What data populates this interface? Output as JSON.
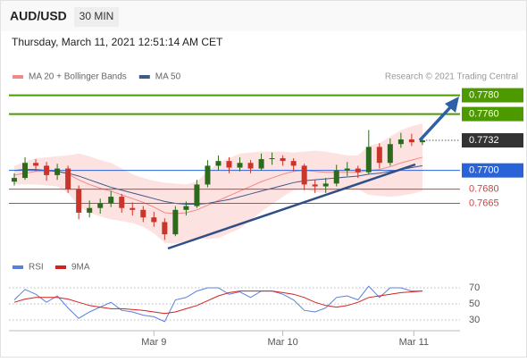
{
  "header": {
    "symbol": "AUD/USD",
    "timeframe": "30 MIN",
    "timestamp": "Thursday, March 11, 2021 12:51:14 AM CET",
    "credit": "Research © 2021 Trading Central"
  },
  "chart_data": [
    {
      "type": "candlestick",
      "up_color": "#2d6a1e",
      "down_color": "#c8352a",
      "ohlc": [
        [
          0.7688,
          0.7697,
          0.7684,
          0.7692
        ],
        [
          0.7692,
          0.7714,
          0.769,
          0.7708
        ],
        [
          0.7708,
          0.7712,
          0.7699,
          0.7705
        ],
        [
          0.7705,
          0.7709,
          0.7689,
          0.7695
        ],
        [
          0.7695,
          0.7707,
          0.769,
          0.7702
        ],
        [
          0.7702,
          0.7705,
          0.7676,
          0.768
        ],
        [
          0.768,
          0.7684,
          0.7648,
          0.7655
        ],
        [
          0.7655,
          0.7668,
          0.765,
          0.766
        ],
        [
          0.766,
          0.767,
          0.7654,
          0.7665
        ],
        [
          0.7665,
          0.7678,
          0.7661,
          0.7672
        ],
        [
          0.7672,
          0.7675,
          0.7655,
          0.766
        ],
        [
          0.766,
          0.7666,
          0.7652,
          0.7658
        ],
        [
          0.7658,
          0.7662,
          0.7645,
          0.765
        ],
        [
          0.765,
          0.7656,
          0.764,
          0.7645
        ],
        [
          0.7645,
          0.7649,
          0.7626,
          0.7632
        ],
        [
          0.7632,
          0.7662,
          0.763,
          0.7658
        ],
        [
          0.7658,
          0.7667,
          0.7652,
          0.7662
        ],
        [
          0.7662,
          0.769,
          0.766,
          0.7685
        ],
        [
          0.7685,
          0.7711,
          0.7682,
          0.7705
        ],
        [
          0.7705,
          0.7716,
          0.77,
          0.771
        ],
        [
          0.771,
          0.7714,
          0.7697,
          0.7703
        ],
        [
          0.7703,
          0.7714,
          0.7699,
          0.7708
        ],
        [
          0.7708,
          0.7711,
          0.7697,
          0.7702
        ],
        [
          0.7702,
          0.7718,
          0.77,
          0.7712
        ],
        [
          0.7712,
          0.7719,
          0.7706,
          0.7713
        ],
        [
          0.7713,
          0.7716,
          0.7705,
          0.771
        ],
        [
          0.771,
          0.7713,
          0.7699,
          0.7705
        ],
        [
          0.7705,
          0.7707,
          0.7679,
          0.7685
        ],
        [
          0.7685,
          0.769,
          0.7676,
          0.7683
        ],
        [
          0.7683,
          0.7692,
          0.7676,
          0.7686
        ],
        [
          0.7686,
          0.7706,
          0.7683,
          0.77
        ],
        [
          0.77,
          0.7709,
          0.7694,
          0.7702
        ],
        [
          0.7702,
          0.7705,
          0.7692,
          0.7698
        ],
        [
          0.7698,
          0.7743,
          0.7696,
          0.7725
        ],
        [
          0.7725,
          0.7729,
          0.7702,
          0.7708
        ],
        [
          0.7708,
          0.7734,
          0.7705,
          0.7728
        ],
        [
          0.7728,
          0.774,
          0.7724,
          0.7733
        ],
        [
          0.7733,
          0.7739,
          0.7726,
          0.773
        ],
        [
          0.773,
          0.7736,
          0.7727,
          0.7732
        ]
      ],
      "series": [
        {
          "name": "MA 20 + Bollinger Bands",
          "color": "#f08a8a",
          "band_color": "#fde2e2",
          "values": [
            0.7695,
            0.7697,
            0.7699,
            0.7699,
            0.7699,
            0.7696,
            0.769,
            0.7685,
            0.7681,
            0.7678,
            0.7674,
            0.767,
            0.7666,
            0.7661,
            0.7655,
            0.7654,
            0.7655,
            0.7658,
            0.7663,
            0.7668,
            0.7673,
            0.7678,
            0.7683,
            0.7688,
            0.7692,
            0.7696,
            0.7699,
            0.77,
            0.7699,
            0.7698,
            0.7698,
            0.7698,
            0.7698,
            0.77,
            0.7701,
            0.7704,
            0.7708,
            0.7711,
            0.7714
          ],
          "upper": [
            0.7705,
            0.7709,
            0.7713,
            0.7714,
            0.7715,
            0.7716,
            0.7718,
            0.7715,
            0.7711,
            0.7708,
            0.7702,
            0.7696,
            0.7692,
            0.7689,
            0.7687,
            0.7686,
            0.7685,
            0.7688,
            0.7699,
            0.7708,
            0.7713,
            0.7718,
            0.7719,
            0.772,
            0.772,
            0.772,
            0.7719,
            0.772,
            0.7721,
            0.772,
            0.7718,
            0.7716,
            0.7716,
            0.7726,
            0.7729,
            0.7736,
            0.7743,
            0.7747,
            0.775
          ],
          "lower": [
            0.7685,
            0.7685,
            0.7685,
            0.7684,
            0.7683,
            0.7676,
            0.7662,
            0.7655,
            0.7651,
            0.7648,
            0.7646,
            0.7644,
            0.764,
            0.7633,
            0.7623,
            0.7622,
            0.7625,
            0.7628,
            0.7627,
            0.7628,
            0.7633,
            0.7638,
            0.7647,
            0.7656,
            0.7664,
            0.7672,
            0.7679,
            0.768,
            0.7677,
            0.7676,
            0.7678,
            0.768,
            0.768,
            0.7674,
            0.7673,
            0.7672,
            0.7673,
            0.7675,
            0.7678
          ]
        },
        {
          "name": "MA 50",
          "color": "#3d5a8a",
          "values": [
            0.77,
            0.7701,
            0.7701,
            0.77,
            0.7699,
            0.7697,
            0.7694,
            0.769,
            0.7686,
            0.7682,
            0.7679,
            0.7676,
            0.7673,
            0.767,
            0.7667,
            0.7665,
            0.7664,
            0.7664,
            0.7665,
            0.7667,
            0.7669,
            0.7672,
            0.7675,
            0.7678,
            0.7681,
            0.7684,
            0.7687,
            0.7689,
            0.769,
            0.7691,
            0.7692,
            0.7693,
            0.7694,
            0.7696,
            0.7697,
            0.7699,
            0.7701,
            0.7703,
            0.7705
          ]
        }
      ],
      "levels": [
        {
          "value": 0.778,
          "label": "0.7780",
          "color": "#4c9a00",
          "style": "box"
        },
        {
          "value": 0.776,
          "label": "0.7760",
          "color": "#4c9a00",
          "style": "box"
        },
        {
          "value": 0.7732,
          "label": "0.7732",
          "color": "#333333",
          "style": "current"
        },
        {
          "value": 0.77,
          "label": "0.7700",
          "color": "#2a62d8",
          "style": "box"
        },
        {
          "value": 0.768,
          "label": "0.7680",
          "color": "#e03a3a",
          "style": "text"
        },
        {
          "value": 0.7665,
          "label": "0.7665",
          "color": "#e03a3a",
          "style": "text"
        }
      ],
      "xlim": [
        0,
        42
      ],
      "ylim": [
        0.7615,
        0.7791
      ],
      "xticks": [
        {
          "value": 13.5,
          "label": "Mar 9"
        },
        {
          "value": 25.5,
          "label": "Mar 10"
        },
        {
          "value": 37.7,
          "label": "Mar 11"
        }
      ]
    },
    {
      "type": "line",
      "xlim": [
        0,
        42
      ],
      "ylim": [
        20,
        80
      ],
      "yticks": [
        70,
        50,
        30
      ],
      "series": [
        {
          "name": "RSI",
          "color": "#5b7fdc",
          "values": [
            55,
            68,
            62,
            52,
            60,
            45,
            32,
            40,
            46,
            52,
            42,
            40,
            36,
            34,
            28,
            55,
            58,
            66,
            70,
            70,
            62,
            65,
            58,
            66,
            66,
            62,
            55,
            42,
            40,
            45,
            58,
            60,
            55,
            72,
            58,
            70,
            70,
            66,
            66
          ]
        },
        {
          "name": "9MA",
          "color": "#d42020",
          "values": [
            52,
            56,
            58,
            58,
            58,
            56,
            52,
            48,
            46,
            44,
            44,
            43,
            42,
            40,
            38,
            40,
            44,
            48,
            54,
            60,
            64,
            66,
            66,
            66,
            66,
            64,
            62,
            58,
            52,
            48,
            46,
            48,
            52,
            58,
            60,
            62,
            64,
            65,
            66
          ]
        }
      ]
    }
  ]
}
